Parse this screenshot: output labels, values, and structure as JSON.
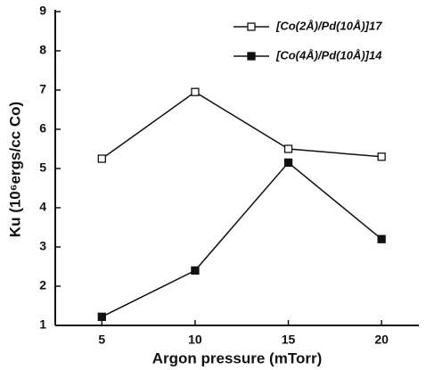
{
  "chart_data": {
    "type": "line",
    "xlabel": "Argon pressure (mTorr)",
    "ylabel": "Ku (10⁶ergs/cc Co)",
    "x": [
      5,
      10,
      15,
      20
    ],
    "series": [
      {
        "name": "[Co(2Å)/Pd(10Å)]17",
        "color": "#111111",
        "filled": false,
        "values": [
          5.25,
          6.95,
          5.5,
          5.3
        ]
      },
      {
        "name": "[Co(4Å)/Pd(10Å)]14",
        "color": "#111111",
        "filled": true,
        "values": [
          1.22,
          2.4,
          5.15,
          3.2
        ]
      }
    ],
    "xlim": [
      2.5,
      22
    ],
    "xticks": [
      5,
      10,
      15,
      20
    ],
    "ylim": [
      1,
      9
    ],
    "yticks": [
      1,
      2,
      3,
      4,
      5,
      6,
      7,
      8,
      9
    ],
    "grid": false,
    "legend": "upper right"
  }
}
